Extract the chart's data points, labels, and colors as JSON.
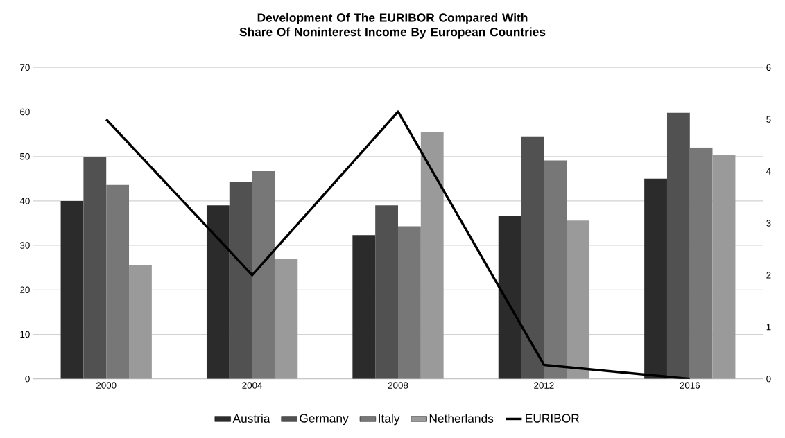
{
  "chart_data": {
    "type": "bar",
    "title": "Development Of The EURIBOR Compared With Share Of Noninterest Income By European Countries",
    "categories": [
      "2000",
      "2004",
      "2008",
      "2012",
      "2016"
    ],
    "series": [
      {
        "name": "Austria",
        "color": "#2b2b2b",
        "values": [
          40,
          39,
          32.3,
          36.6,
          45
        ]
      },
      {
        "name": "Germany",
        "color": "#515151",
        "values": [
          49.9,
          44.3,
          39,
          54.5,
          59.8
        ]
      },
      {
        "name": "Italy",
        "color": "#777777",
        "values": [
          43.6,
          46.7,
          34.3,
          49.1,
          52
        ]
      },
      {
        "name": "Netherlands",
        "color": "#9a9a9a",
        "values": [
          25.5,
          27,
          55.5,
          35.6,
          50.3
        ]
      },
      {
        "name": "EURIBOR",
        "color": "#000000",
        "type": "line",
        "axis": "y2",
        "values": [
          5.0,
          2.0,
          5.15,
          0.27,
          0.0
        ]
      }
    ],
    "ylim": [
      0,
      70
    ],
    "yticks": [
      0,
      10,
      20,
      30,
      40,
      50,
      60,
      70
    ],
    "y2lim": [
      0,
      6
    ],
    "y2ticks": [
      0,
      1,
      2,
      3,
      4,
      5,
      6
    ],
    "grid": "y",
    "legend": "bottom"
  }
}
